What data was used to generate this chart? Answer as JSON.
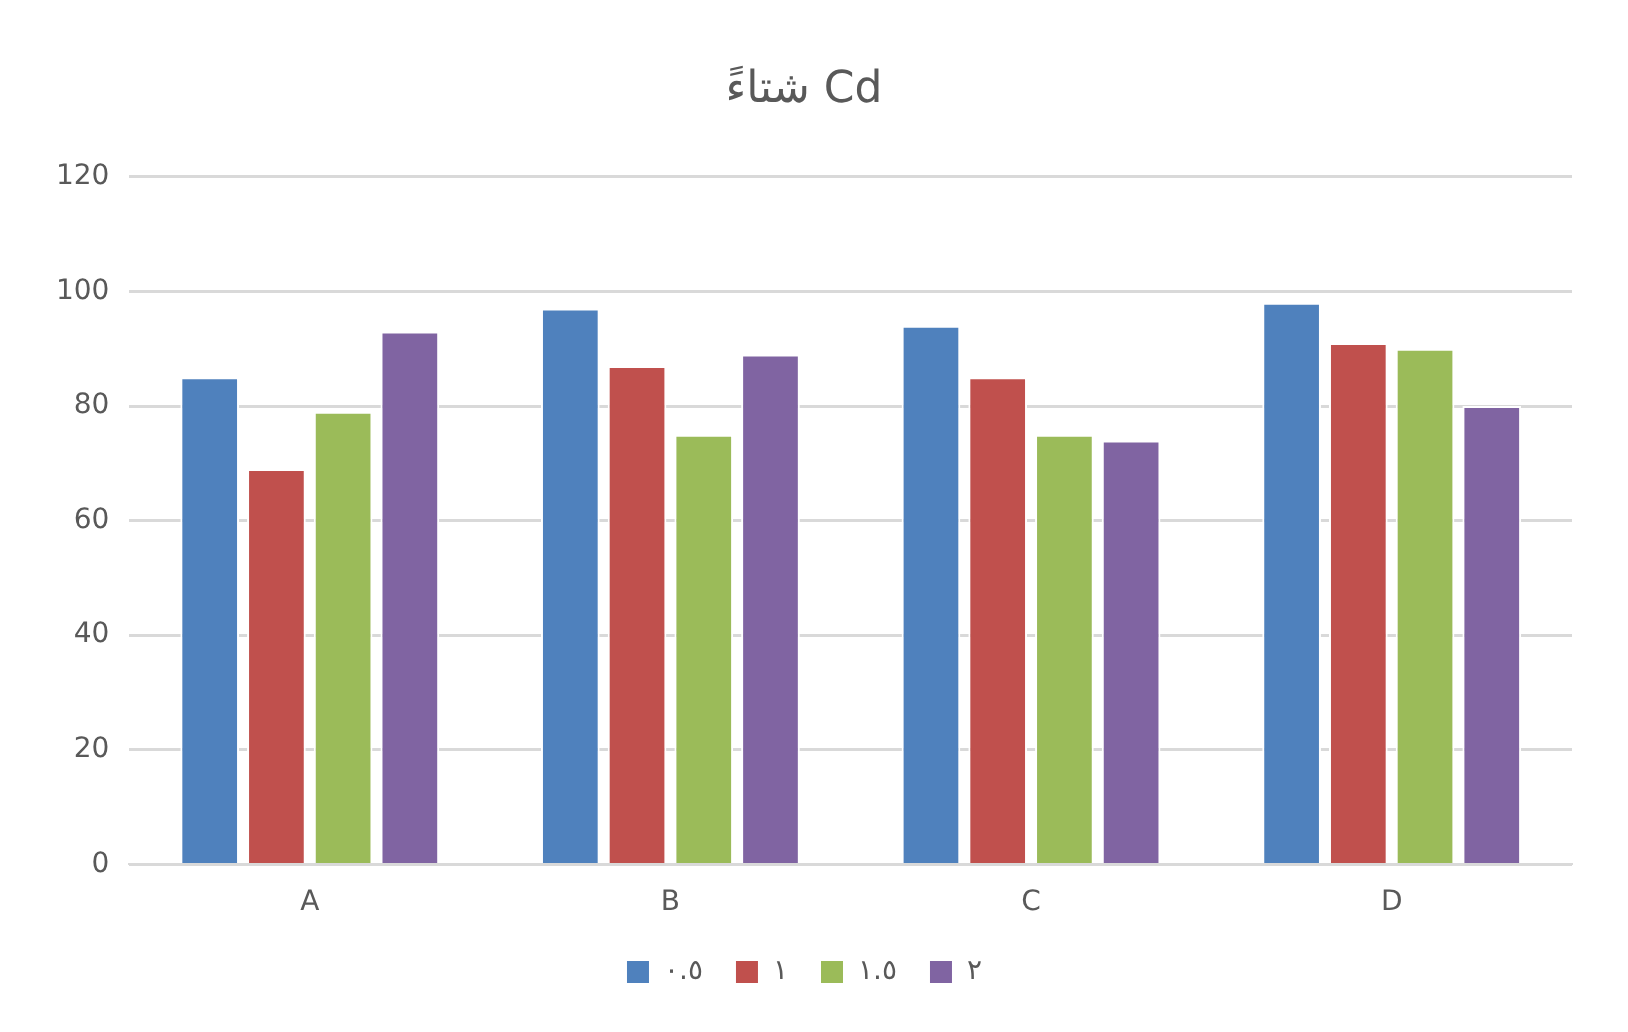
{
  "chart_data": {
    "type": "bar",
    "title": "شتاءً Cd",
    "categories": [
      "A",
      "B",
      "C",
      "D"
    ],
    "series": [
      {
        "name": "٠.٥",
        "color": "#4f81bd",
        "values": [
          85,
          97,
          94,
          98
        ]
      },
      {
        "name": "١",
        "color": "#c0504d",
        "values": [
          69,
          87,
          85,
          91
        ]
      },
      {
        "name": "١.٥",
        "color": "#9bbb59",
        "values": [
          79,
          75,
          75,
          90
        ]
      },
      {
        "name": "٢",
        "color": "#8064a2",
        "values": [
          93,
          89,
          74,
          80
        ]
      }
    ],
    "ylim": [
      0,
      120
    ],
    "yticks": [
      0,
      20,
      40,
      60,
      80,
      100,
      120
    ],
    "grid": "y",
    "legend": "bottom"
  }
}
